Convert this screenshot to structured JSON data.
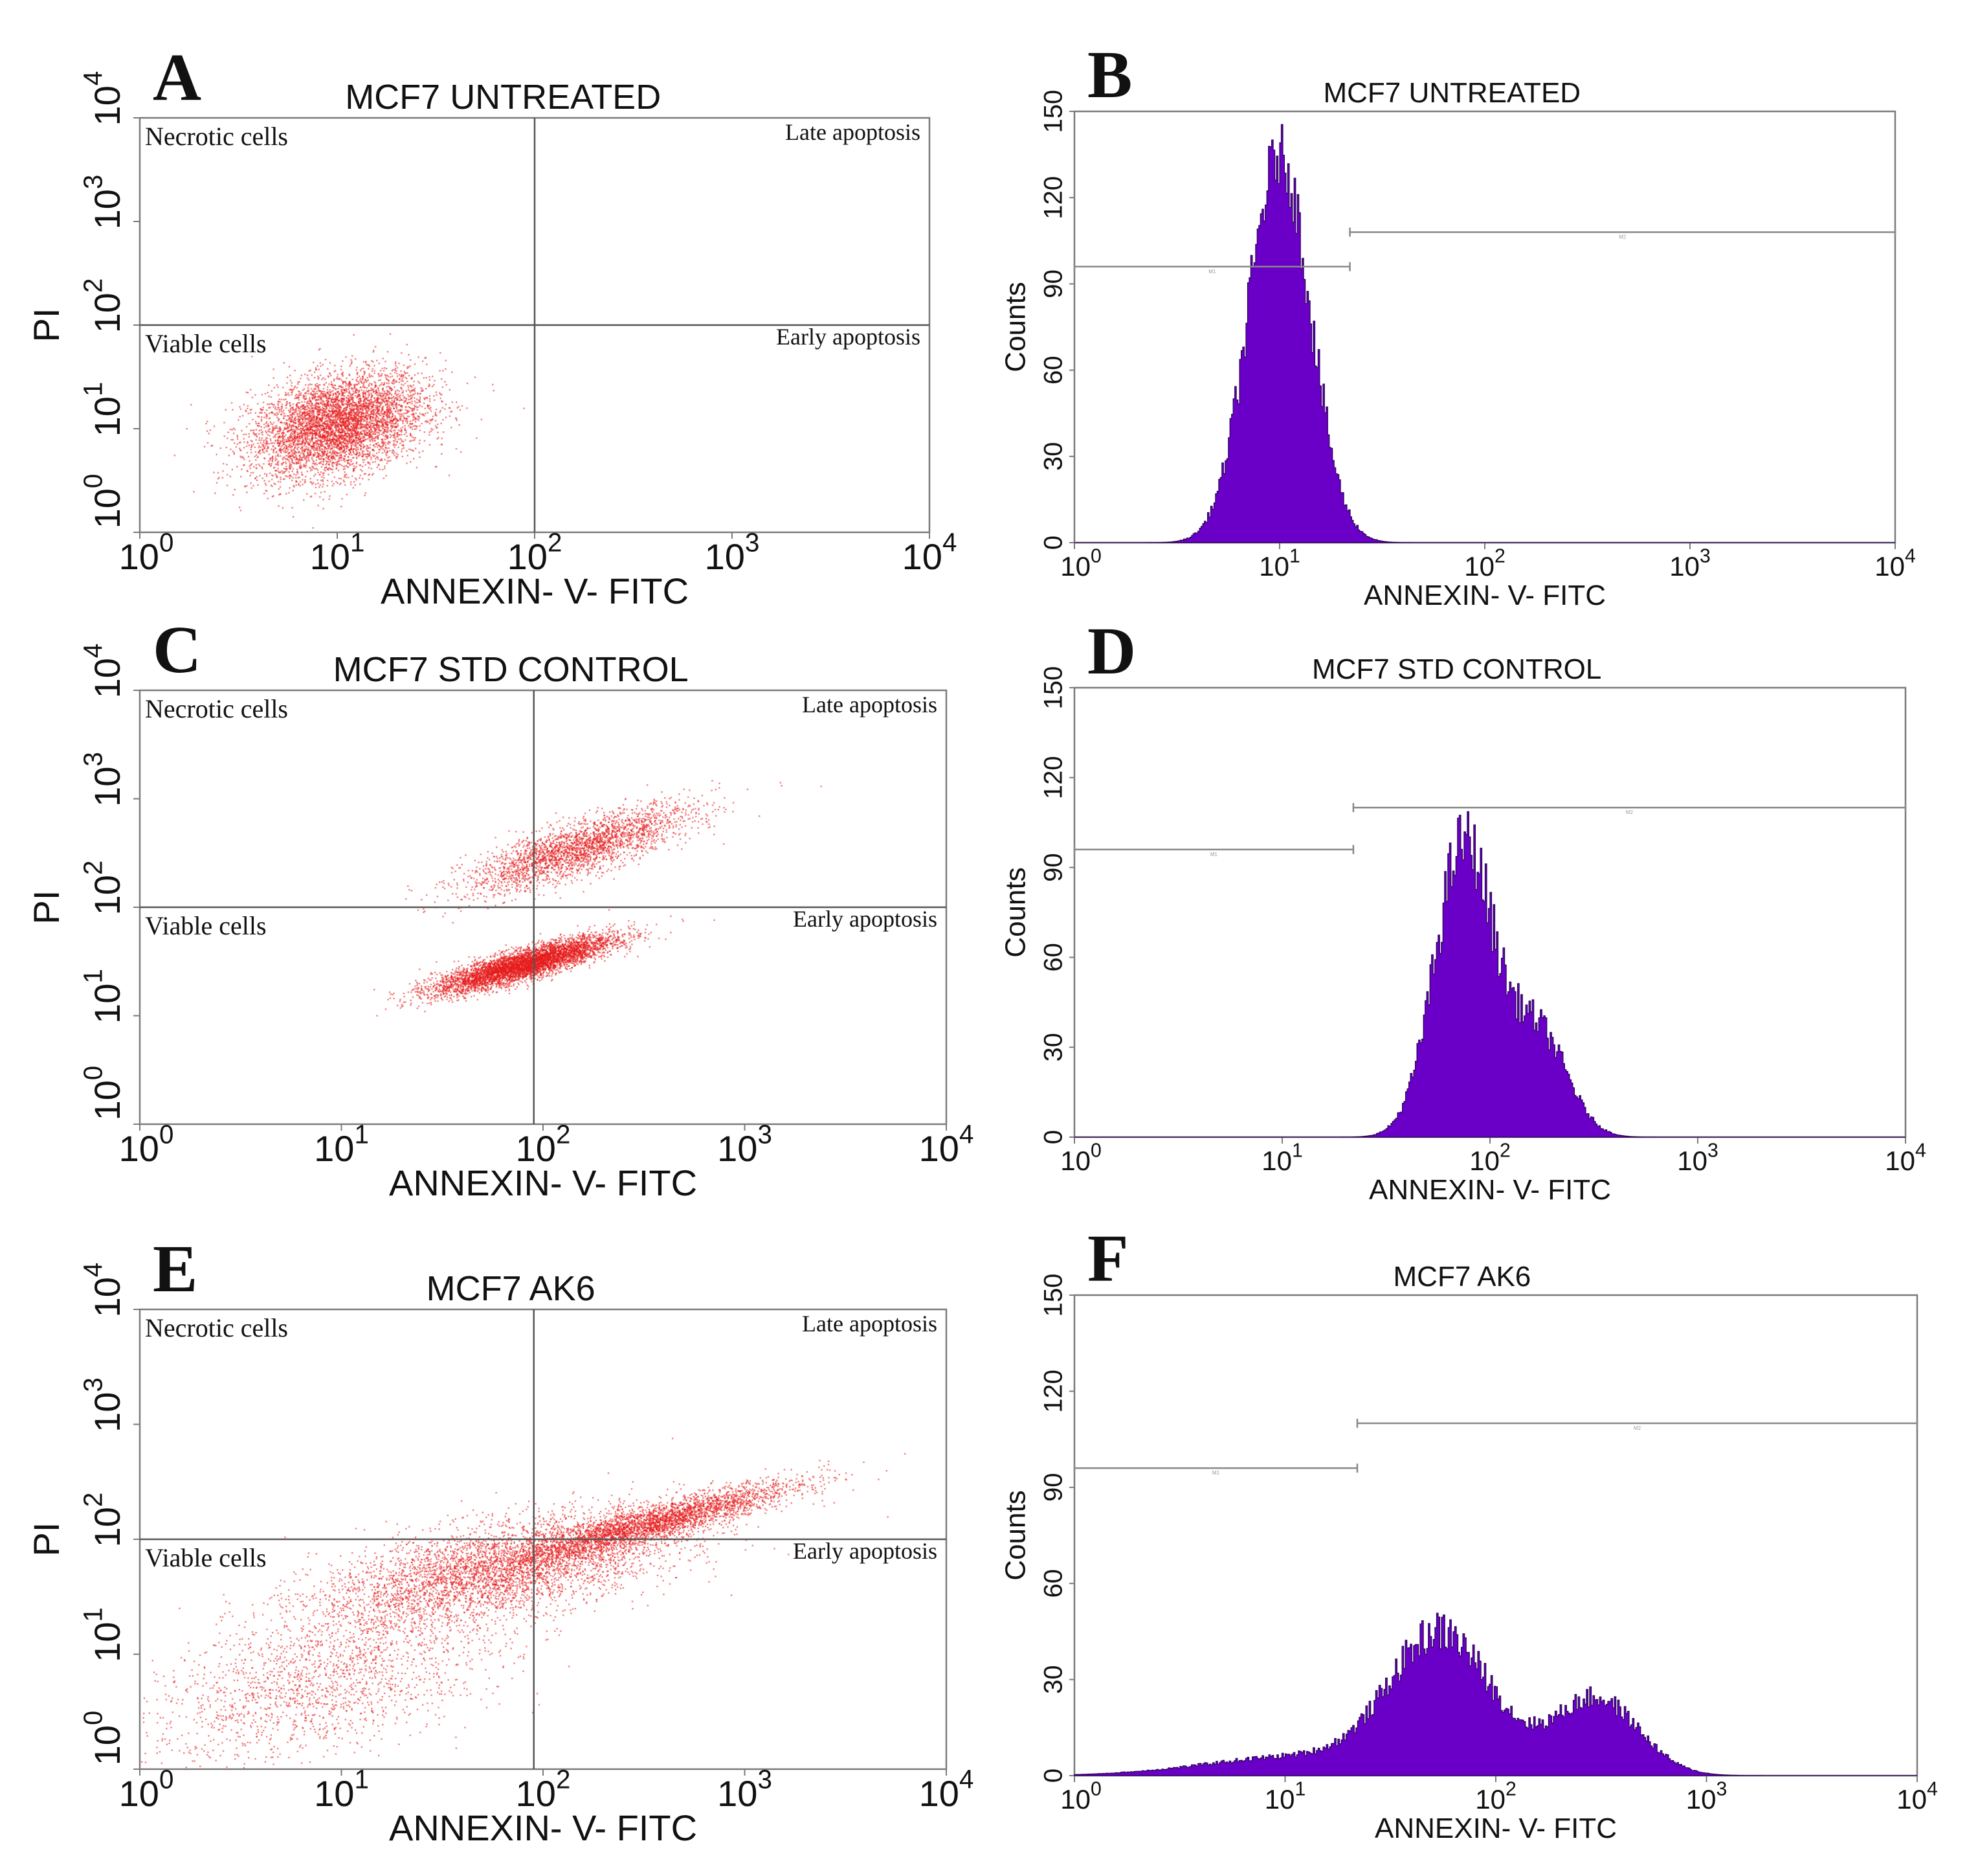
{
  "figure": {
    "colors": {
      "dot": "#e51b1b",
      "histogram_fill": "#6a00c8",
      "histogram_edge": "#2a0055",
      "axis": "#7a7a7a",
      "text": "#111111"
    }
  },
  "chart_data": [
    {
      "id": "A",
      "panel_letter": "A",
      "type": "scatter",
      "title": "MCF7 UNTREATED",
      "xlabel": "ANNEXIN- V- FITC",
      "ylabel": "PI",
      "x_scale": "log",
      "y_scale": "log",
      "xlim": [
        1,
        10000
      ],
      "ylim": [
        1,
        10000
      ],
      "x_ticks": [
        {
          "base": "10",
          "exp": "0"
        },
        {
          "base": "10",
          "exp": "1"
        },
        {
          "base": "10",
          "exp": "2"
        },
        {
          "base": "10",
          "exp": "3"
        },
        {
          "base": "10",
          "exp": "4"
        }
      ],
      "y_ticks": [
        {
          "base": "10",
          "exp": "0"
        },
        {
          "base": "10",
          "exp": "1"
        },
        {
          "base": "10",
          "exp": "2"
        },
        {
          "base": "10",
          "exp": "3"
        },
        {
          "base": "10",
          "exp": "4"
        }
      ],
      "quadrant_gates": {
        "x": 100,
        "y": 100
      },
      "quadrant_labels": {
        "upper_left": "Necrotic cells",
        "upper_right": "Late apoptosis",
        "lower_left": "Viable cells",
        "lower_right": "Early apoptosis"
      },
      "populations": [
        {
          "center_x": 10,
          "center_y": 11,
          "spread_decades_x": 0.22,
          "spread_decades_y": 0.25,
          "correlation": 0.35,
          "events": 5200
        }
      ]
    },
    {
      "id": "B",
      "panel_letter": "B",
      "type": "histogram",
      "title": "MCF7 UNTREATED",
      "xlabel": "ANNEXIN- V- FITC",
      "ylabel": "Counts",
      "x_scale": "log",
      "xlim": [
        1,
        10000
      ],
      "ylim": [
        0,
        150
      ],
      "y_ticks": [
        "0",
        "30",
        "60",
        "90",
        "120",
        "150"
      ],
      "x_ticks": [
        {
          "base": "10",
          "exp": "0"
        },
        {
          "base": "10",
          "exp": "1"
        },
        {
          "base": "10",
          "exp": "2"
        },
        {
          "base": "10",
          "exp": "3"
        },
        {
          "base": "10",
          "exp": "4"
        }
      ],
      "gates": [
        {
          "name": "M1",
          "x_start": 1,
          "x_end": 22,
          "y": 96
        },
        {
          "name": "M2",
          "x_start": 22,
          "x_end": 10000,
          "y": 108
        }
      ],
      "peaks": [
        {
          "center_x": 10,
          "height": 135,
          "width_decades": 0.15
        }
      ]
    },
    {
      "id": "C",
      "panel_letter": "C",
      "type": "scatter",
      "title": "MCF7 STD CONTROL",
      "xlabel": "ANNEXIN- V- FITC",
      "ylabel": "PI",
      "x_scale": "log",
      "y_scale": "log",
      "xlim": [
        1,
        10000
      ],
      "ylim": [
        1,
        10000
      ],
      "x_ticks": [
        {
          "base": "10",
          "exp": "0"
        },
        {
          "base": "10",
          "exp": "1"
        },
        {
          "base": "10",
          "exp": "2"
        },
        {
          "base": "10",
          "exp": "3"
        },
        {
          "base": "10",
          "exp": "4"
        }
      ],
      "y_ticks": [
        {
          "base": "10",
          "exp": "0"
        },
        {
          "base": "10",
          "exp": "1"
        },
        {
          "base": "10",
          "exp": "2"
        },
        {
          "base": "10",
          "exp": "3"
        },
        {
          "base": "10",
          "exp": "4"
        }
      ],
      "quadrant_gates": {
        "x": 90,
        "y": 100
      },
      "quadrant_labels": {
        "upper_left": "Necrotic cells",
        "upper_right": "Late apoptosis",
        "lower_left": "Viable cells",
        "lower_right": "Early apoptosis"
      },
      "populations": [
        {
          "center_x": 80,
          "center_y": 30,
          "spread_decades_x": 0.22,
          "spread_decades_y": 0.13,
          "correlation": 0.85,
          "events": 5200
        },
        {
          "center_x": 150,
          "center_y": 350,
          "spread_decades_x": 0.28,
          "spread_decades_y": 0.2,
          "correlation": 0.8,
          "events": 2600
        }
      ]
    },
    {
      "id": "D",
      "panel_letter": "D",
      "type": "histogram",
      "title": "MCF7 STD CONTROL",
      "xlabel": "ANNEXIN- V- FITC",
      "ylabel": "Counts",
      "x_scale": "log",
      "xlim": [
        1,
        10000
      ],
      "ylim": [
        0,
        150
      ],
      "y_ticks": [
        "0",
        "30",
        "60",
        "90",
        "120",
        "150"
      ],
      "x_ticks": [
        {
          "base": "10",
          "exp": "0"
        },
        {
          "base": "10",
          "exp": "1"
        },
        {
          "base": "10",
          "exp": "2"
        },
        {
          "base": "10",
          "exp": "3"
        },
        {
          "base": "10",
          "exp": "4"
        }
      ],
      "gates": [
        {
          "name": "M1",
          "x_start": 1,
          "x_end": 22,
          "y": 96
        },
        {
          "name": "M2",
          "x_start": 22,
          "x_end": 10000,
          "y": 110
        }
      ],
      "peaks": [
        {
          "center_x": 75,
          "height": 98,
          "width_decades": 0.14
        },
        {
          "center_x": 170,
          "height": 35,
          "width_decades": 0.14
        }
      ]
    },
    {
      "id": "E",
      "panel_letter": "E",
      "type": "scatter",
      "title": "MCF7 AK6",
      "xlabel": "ANNEXIN- V- FITC",
      "ylabel": "PI",
      "x_scale": "log",
      "y_scale": "log",
      "xlim": [
        1,
        10000
      ],
      "ylim": [
        1,
        10000
      ],
      "x_ticks": [
        {
          "base": "10",
          "exp": "0"
        },
        {
          "base": "10",
          "exp": "1"
        },
        {
          "base": "10",
          "exp": "2"
        },
        {
          "base": "10",
          "exp": "3"
        },
        {
          "base": "10",
          "exp": "4"
        }
      ],
      "y_ticks": [
        {
          "base": "10",
          "exp": "0"
        },
        {
          "base": "10",
          "exp": "1"
        },
        {
          "base": "10",
          "exp": "2"
        },
        {
          "base": "10",
          "exp": "3"
        },
        {
          "base": "10",
          "exp": "4"
        }
      ],
      "quadrant_gates": {
        "x": 90,
        "y": 100
      },
      "quadrant_labels": {
        "upper_left": "Necrotic cells",
        "upper_right": "Late apoptosis",
        "lower_left": "Viable cells",
        "lower_right": "Early apoptosis"
      },
      "populations": [
        {
          "center_x": 60,
          "center_y": 55,
          "spread_decades_x": 0.45,
          "spread_decades_y": 0.25,
          "correlation": 0.6,
          "events": 4200
        },
        {
          "center_x": 350,
          "center_y": 140,
          "spread_decades_x": 0.35,
          "spread_decades_y": 0.18,
          "correlation": 0.9,
          "events": 3200
        },
        {
          "center_x": 8,
          "center_y": 6,
          "spread_decades_x": 0.45,
          "spread_decades_y": 0.35,
          "correlation": 0.5,
          "events": 1800
        }
      ]
    },
    {
      "id": "F",
      "panel_letter": "F",
      "type": "histogram",
      "title": "MCF7 AK6",
      "xlabel": "ANNEXIN- V- FITC",
      "ylabel": "Counts",
      "x_scale": "log",
      "xlim": [
        1,
        10000
      ],
      "ylim": [
        0,
        150
      ],
      "y_ticks": [
        "0",
        "30",
        "60",
        "90",
        "120",
        "150"
      ],
      "x_ticks": [
        {
          "base": "10",
          "exp": "0"
        },
        {
          "base": "10",
          "exp": "1"
        },
        {
          "base": "10",
          "exp": "2"
        },
        {
          "base": "10",
          "exp": "3"
        },
        {
          "base": "10",
          "exp": "4"
        }
      ],
      "gates": [
        {
          "name": "M1",
          "x_start": 1,
          "x_end": 22,
          "y": 96
        },
        {
          "name": "M2",
          "x_start": 22,
          "x_end": 10000,
          "y": 110
        }
      ],
      "peaks": [
        {
          "center_x": 55,
          "height": 43,
          "width_decades": 0.24
        },
        {
          "center_x": 300,
          "height": 24,
          "width_decades": 0.2
        },
        {
          "center_x": 12,
          "height": 6,
          "width_decades": 0.45
        }
      ]
    }
  ]
}
